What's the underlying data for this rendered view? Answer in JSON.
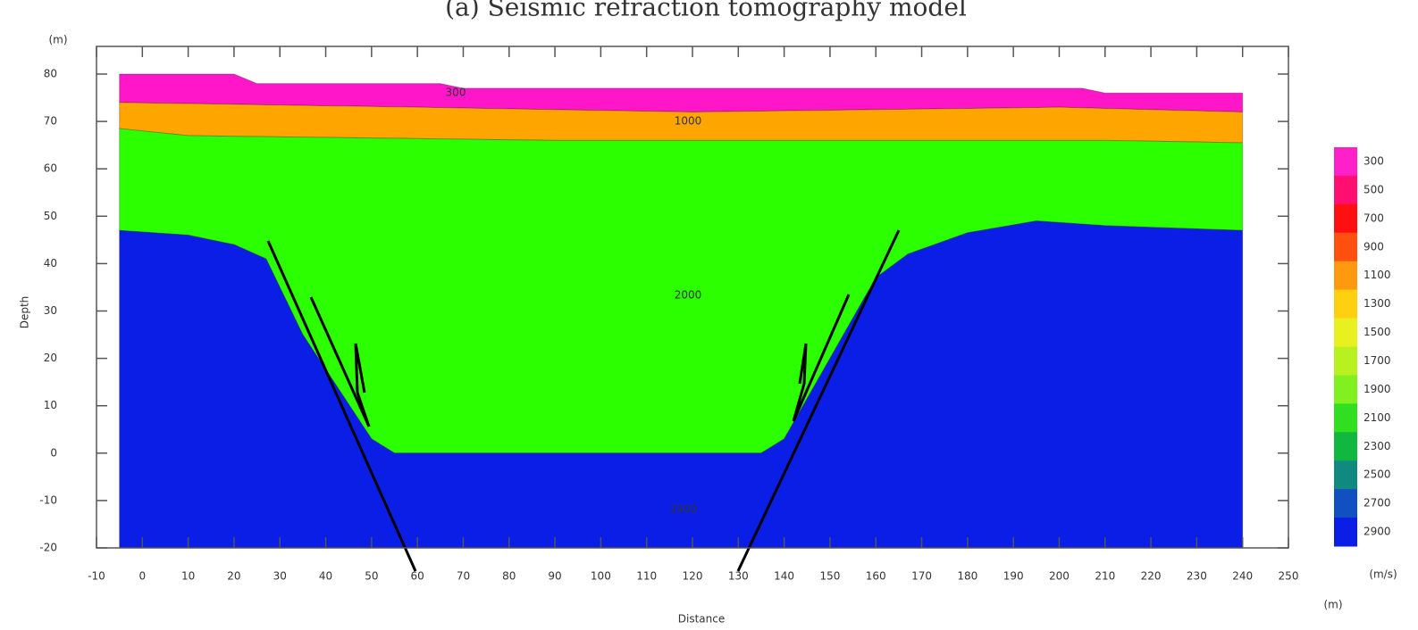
{
  "chart_data": {
    "type": "layers",
    "title": "(a) Seismic refraction tomography model",
    "y_unit": "(m)",
    "y_label": "Depth",
    "x_label": "Distance",
    "x_unit": "(m)",
    "xlim": [
      -10,
      250
    ],
    "xticks": [
      -10,
      0,
      10,
      20,
      30,
      40,
      50,
      60,
      70,
      80,
      90,
      100,
      110,
      120,
      130,
      140,
      150,
      160,
      170,
      180,
      190,
      200,
      210,
      220,
      230,
      240,
      250
    ],
    "ylim": [
      -20,
      80
    ],
    "yticks": [
      -20,
      -10,
      0,
      10,
      20,
      30,
      40,
      50,
      60,
      70,
      80
    ],
    "layers": [
      {
        "label": "300",
        "color": "#ff16c8",
        "x": [
          -5,
          20,
          25,
          65,
          70,
          205,
          210,
          240
        ],
        "top": [
          80,
          80,
          78,
          78,
          77,
          77,
          76,
          76
        ]
      },
      {
        "label": "1000",
        "color": "#ffa500",
        "x": [
          -5,
          60,
          120,
          200,
          240
        ],
        "top": [
          74,
          73,
          72,
          73,
          72
        ]
      },
      {
        "label": "2000",
        "color": "#2cff00",
        "x": [
          -5,
          10,
          90,
          200,
          210,
          240
        ],
        "top": [
          68.5,
          67,
          66,
          66,
          66,
          65.5
        ]
      },
      {
        "label": "2900",
        "color": "#0a1ee6",
        "x": [
          -5,
          10,
          20,
          27,
          35,
          50,
          55,
          135,
          140,
          150,
          160,
          167,
          180,
          195,
          210,
          240
        ],
        "top": [
          47,
          46,
          44,
          41,
          25,
          3,
          0,
          0,
          3,
          20,
          37,
          42,
          46.5,
          49,
          48,
          47
        ]
      }
    ],
    "colorbar": {
      "unit": "(m/s)",
      "labels": [
        300,
        500,
        700,
        900,
        1100,
        1300,
        1500,
        1700,
        1900,
        2100,
        2300,
        2500,
        2700,
        2900
      ],
      "colors": [
        "#ff20c8",
        "#ff1070",
        "#ff1010",
        "#ff5010",
        "#ff9a10",
        "#ffd010",
        "#e8f020",
        "#b8f020",
        "#80f020",
        "#30e020",
        "#10b840",
        "#108a80",
        "#1050c0",
        "#0a1ee6"
      ]
    }
  }
}
